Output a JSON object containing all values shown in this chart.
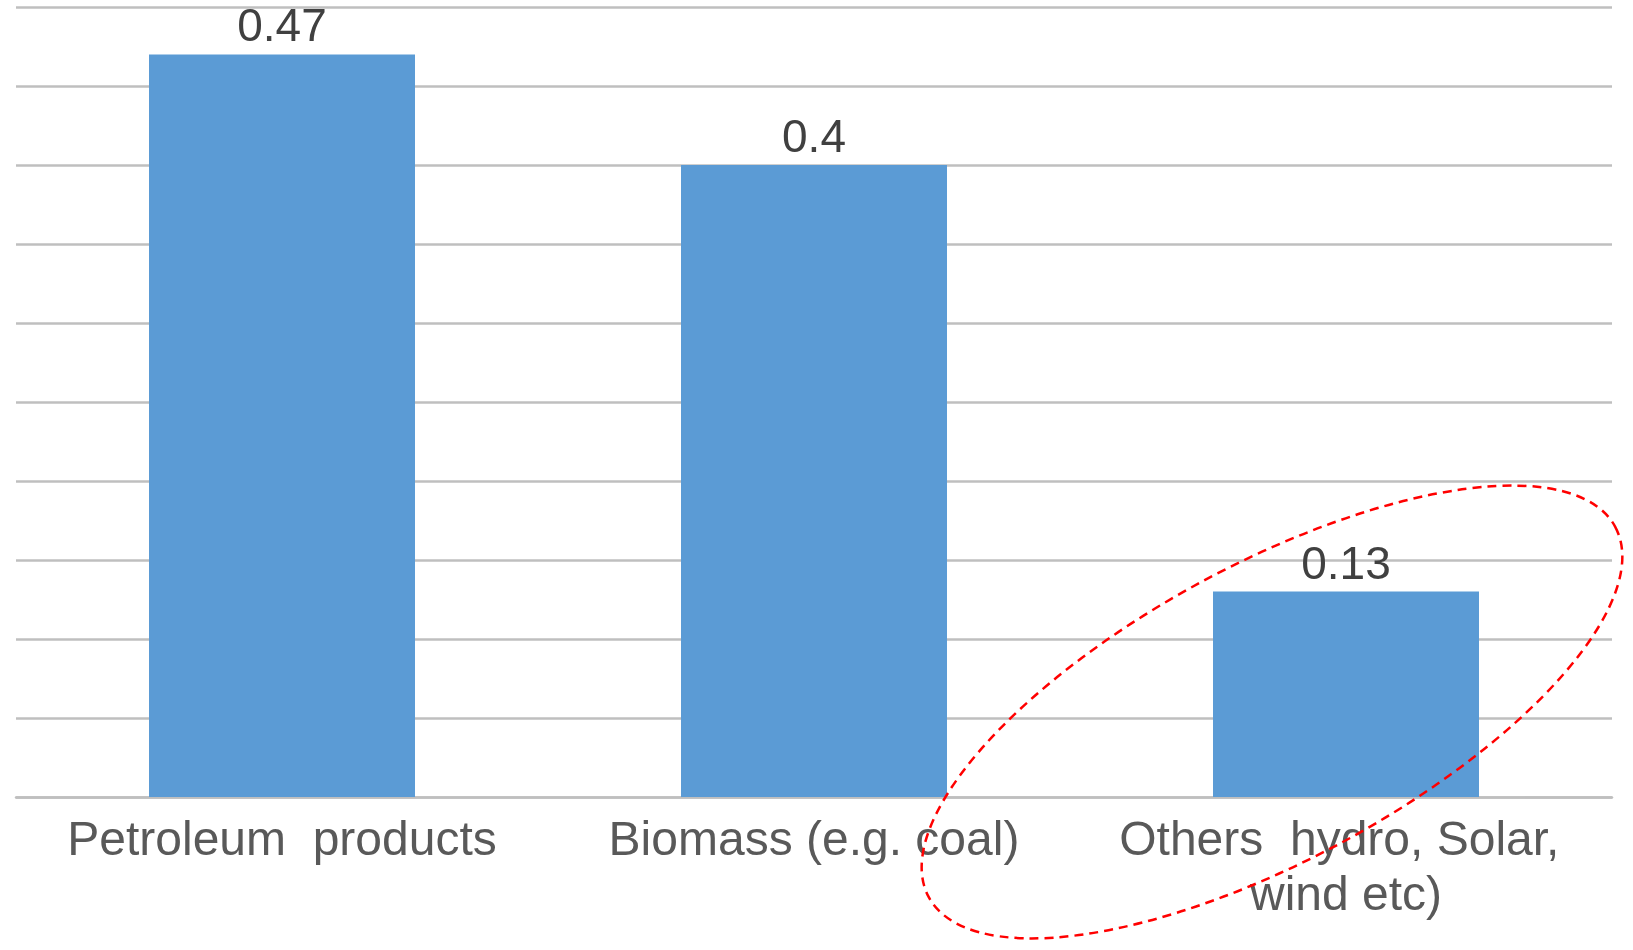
{
  "chart_data": {
    "type": "bar",
    "categories": [
      "Petroleum  products",
      "Biomass (e.g. coal)",
      "Others  hydro, Solar, wind etc)"
    ],
    "values": [
      0.47,
      0.4,
      0.13
    ],
    "color": "#5b9bd5",
    "ylim": [
      0,
      0.5
    ],
    "yticks": [
      {
        "value": 0,
        "label": null
      },
      {
        "value": 0.05,
        "label": null
      },
      {
        "value": 0.1,
        "label": null
      },
      {
        "value": 0.15,
        "label": null
      },
      {
        "value": 0.2,
        "label": null
      },
      {
        "value": 0.25,
        "label": null
      },
      {
        "value": 0.3,
        "label": null
      },
      {
        "value": 0.35,
        "label": null
      },
      {
        "value": 0.4,
        "label": null
      },
      {
        "value": 0.45,
        "label": null
      },
      {
        "value": 0.5,
        "label": null
      }
    ],
    "grid": "y",
    "tick_labels": "x",
    "data_labels": true
  }
}
